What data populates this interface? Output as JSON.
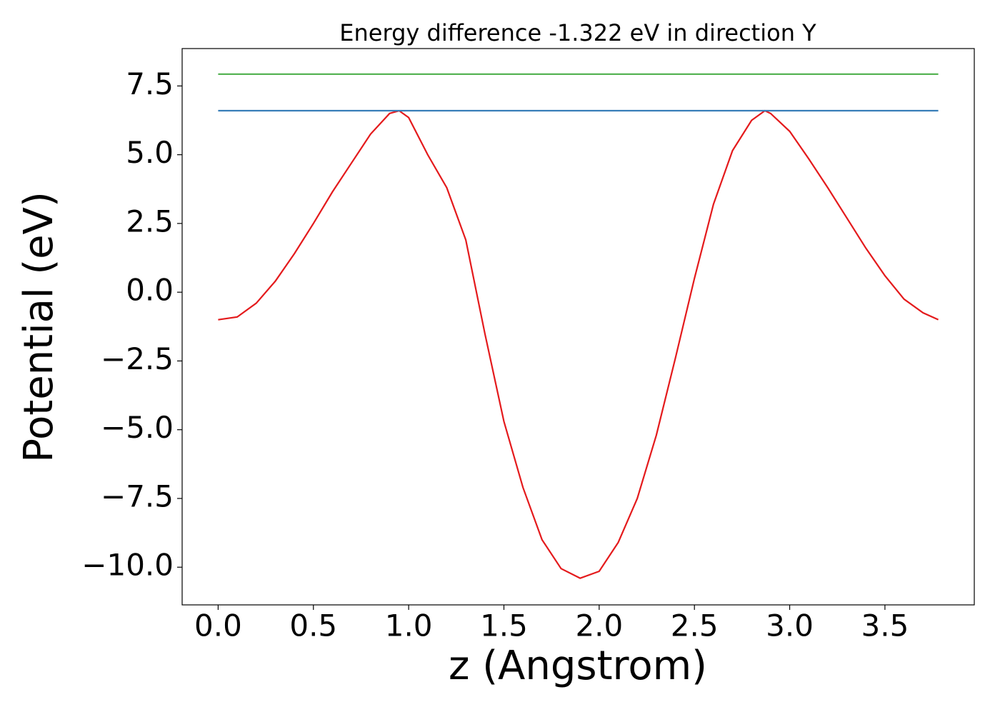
{
  "chart_data": {
    "type": "line",
    "title": "Energy difference -1.322 eV in direction Y",
    "xlabel": "z (Angstrom)",
    "ylabel": "Potential (eV)",
    "xlim": [
      -0.189,
      3.969
    ],
    "ylim": [
      -11.37,
      8.86
    ],
    "xticks": [
      {
        "value": 0,
        "label": "0.0"
      },
      {
        "value": 0.5,
        "label": "0.5"
      },
      {
        "value": 1,
        "label": "1.0"
      },
      {
        "value": 1.5,
        "label": "1.5"
      },
      {
        "value": 2,
        "label": "2.0"
      },
      {
        "value": 2.5,
        "label": "2.5"
      },
      {
        "value": 3,
        "label": "3.0"
      },
      {
        "value": 3.5,
        "label": "3.5"
      }
    ],
    "yticks": [
      {
        "value": -10,
        "label": "−10.0"
      },
      {
        "value": -7.5,
        "label": "−7.5"
      },
      {
        "value": -5,
        "label": "−5.0"
      },
      {
        "value": -2.5,
        "label": "−2.5"
      },
      {
        "value": 0,
        "label": "0.0"
      },
      {
        "value": 2.5,
        "label": "2.5"
      },
      {
        "value": 5,
        "label": "5.0"
      },
      {
        "value": 7.5,
        "label": "7.5"
      }
    ],
    "series": [
      {
        "color": "#e41a1c",
        "x": [
          0,
          0.1,
          0.2,
          0.3,
          0.4,
          0.5,
          0.6,
          0.7,
          0.8,
          0.9,
          0.95,
          1.0,
          1.1,
          1.2,
          1.3,
          1.4,
          1.5,
          1.6,
          1.7,
          1.8,
          1.9,
          2.0,
          2.1,
          2.2,
          2.3,
          2.4,
          2.5,
          2.6,
          2.7,
          2.8,
          2.87,
          2.9,
          3.0,
          3.1,
          3.2,
          3.3,
          3.4,
          3.5,
          3.6,
          3.7,
          3.78
        ],
        "values": [
          -1.0,
          -0.9,
          -0.4,
          0.4,
          1.4,
          2.5,
          3.65,
          4.7,
          5.75,
          6.5,
          6.6,
          6.35,
          5.0,
          3.8,
          1.9,
          -1.5,
          -4.7,
          -7.1,
          -9.0,
          -10.05,
          -10.4,
          -10.15,
          -9.1,
          -7.5,
          -5.2,
          -2.4,
          0.5,
          3.2,
          5.15,
          6.25,
          6.6,
          6.5,
          5.85,
          4.85,
          3.8,
          2.7,
          1.6,
          0.6,
          -0.25,
          -0.75,
          -1.0
        ]
      },
      {
        "color": "#377eb8",
        "x": [
          0,
          3.78
        ],
        "values": [
          6.6,
          6.6
        ]
      },
      {
        "color": "#4daf4a",
        "x": [
          0,
          3.78
        ],
        "values": [
          7.93,
          7.93
        ]
      }
    ]
  }
}
